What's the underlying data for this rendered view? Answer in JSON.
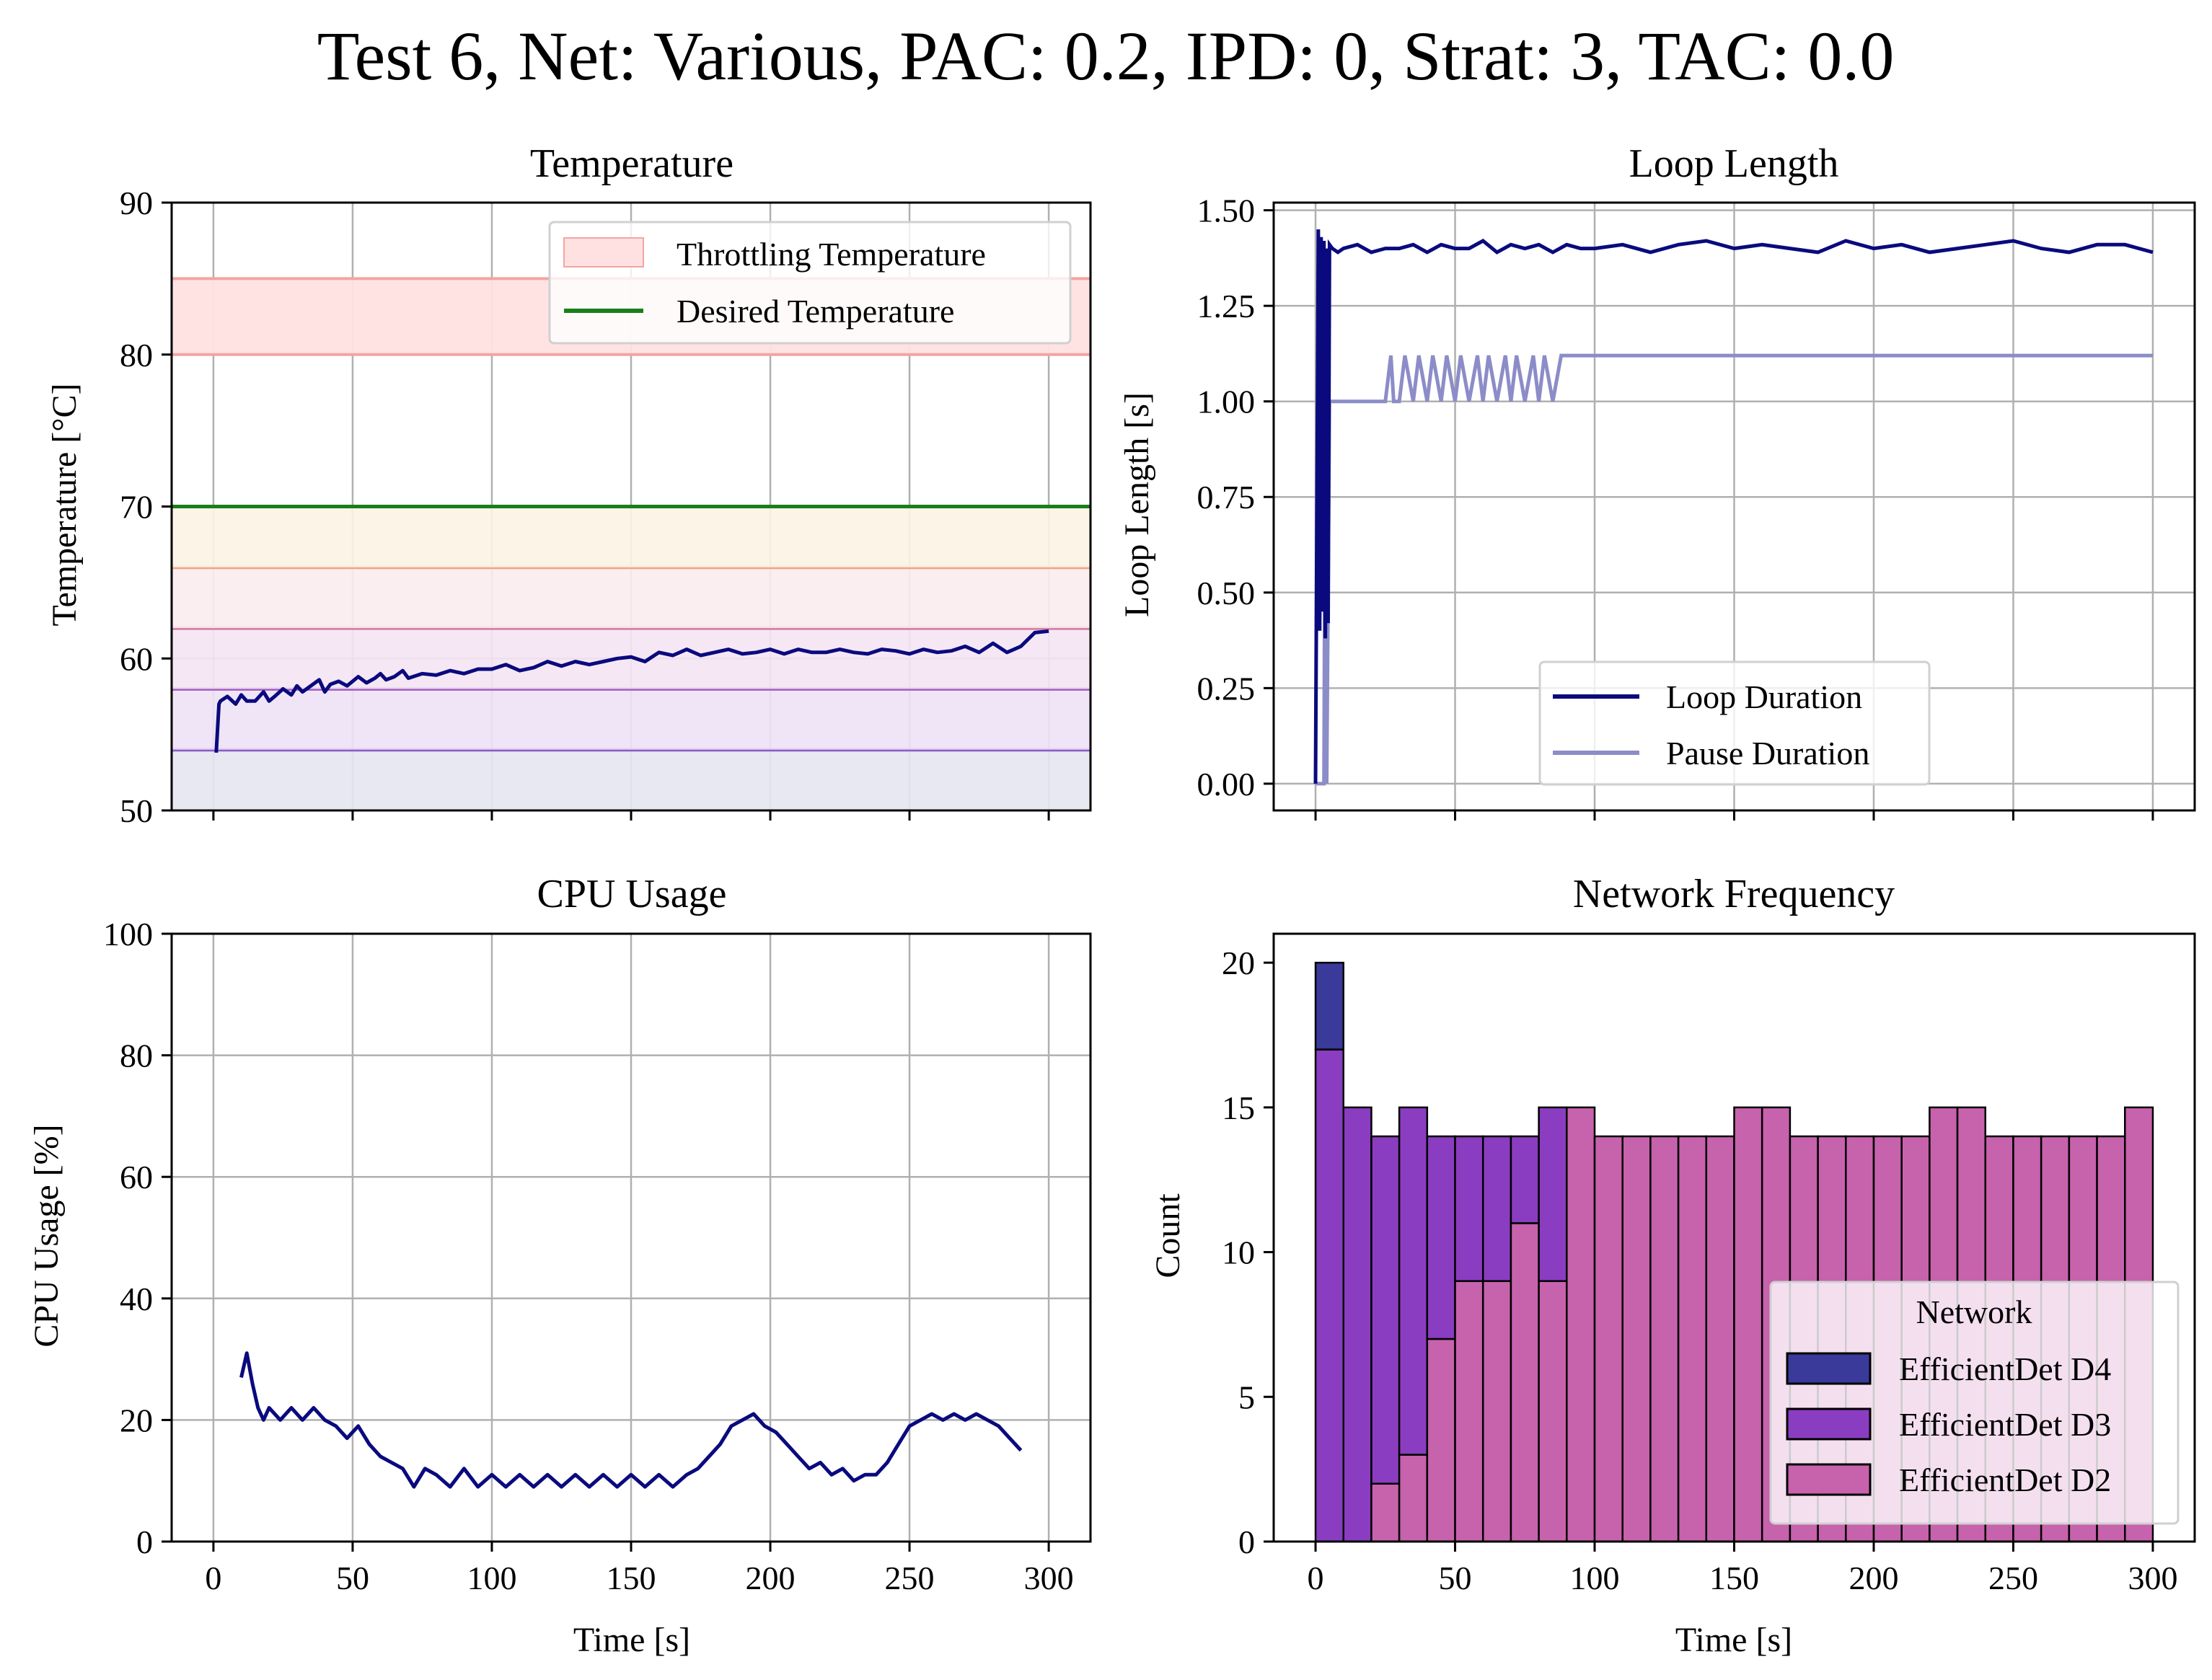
{
  "figure": {
    "title": "Test 6, Net: Various, PAC: 0.2, IPD: 0, Strat: 3, TAC: 0.0"
  },
  "colors": {
    "navy": "#0a0a7e",
    "pause": "#8c8cc8",
    "throttle_band": "#ffe1e1",
    "throttle_line": "#f4a3a3",
    "desired": "#1a7f1a",
    "hist_d4": "#3a3a9a",
    "hist_d3": "#8a3dc0",
    "hist_d2": "#c762ad"
  },
  "chart_data": [
    {
      "id": "temperature",
      "type": "line",
      "title": "Temperature",
      "xlabel": "",
      "ylabel": "Temperature [°C]",
      "xlim": [
        -15,
        315
      ],
      "ylim": [
        50,
        90
      ],
      "xticks": [
        0,
        50,
        100,
        150,
        200,
        250,
        300
      ],
      "yticks": [
        50,
        60,
        70,
        80,
        90
      ],
      "show_xticklabels": false,
      "grid": true,
      "legend": "top-right",
      "legend_entries": [
        "Throttling Temperature",
        "Desired Temperature"
      ],
      "throttling_band": [
        80,
        85
      ],
      "desired_temperature": 70,
      "bands": [
        {
          "y0": 50,
          "y1": 54,
          "fill": "#e5e5f2",
          "line": "#8a5cc6"
        },
        {
          "y0": 54,
          "y1": 58,
          "fill": "#ede2f6",
          "line": "#a05cc0"
        },
        {
          "y0": 58,
          "y1": 62,
          "fill": "#f4e6f3",
          "line": "#d07aa0"
        },
        {
          "y0": 62,
          "y1": 66,
          "fill": "#faecee",
          "line": "#f2a384"
        },
        {
          "y0": 66,
          "y1": 70,
          "fill": "#fdf3e6",
          "line": "#f7c2a2"
        }
      ],
      "series": [
        {
          "name": "Temperature",
          "x": [
            1,
            2,
            2.5,
            5,
            8,
            10,
            12,
            15,
            18,
            20,
            22,
            25,
            28,
            30,
            32,
            35,
            38,
            40,
            42,
            45,
            48,
            50,
            52,
            55,
            58,
            60,
            62,
            65,
            68,
            70,
            75,
            80,
            85,
            90,
            95,
            100,
            105,
            110,
            115,
            120,
            125,
            130,
            135,
            140,
            145,
            150,
            155,
            160,
            165,
            170,
            175,
            180,
            185,
            190,
            195,
            200,
            205,
            210,
            215,
            220,
            225,
            230,
            235,
            240,
            245,
            250,
            255,
            260,
            265,
            270,
            275,
            280,
            285,
            290,
            295,
            300
          ],
          "y": [
            53.8,
            57,
            57.2,
            57.5,
            57,
            57.6,
            57.2,
            57.2,
            57.8,
            57.2,
            57.5,
            58,
            57.6,
            58.2,
            57.8,
            58.2,
            58.6,
            57.8,
            58.3,
            58.5,
            58.2,
            58.5,
            58.8,
            58.4,
            58.7,
            59,
            58.6,
            58.8,
            59.2,
            58.7,
            59,
            58.9,
            59.2,
            59,
            59.3,
            59.3,
            59.6,
            59.2,
            59.4,
            59.8,
            59.5,
            59.8,
            59.6,
            59.8,
            60,
            60.1,
            59.8,
            60.4,
            60.2,
            60.6,
            60.2,
            60.4,
            60.6,
            60.3,
            60.4,
            60.6,
            60.3,
            60.6,
            60.4,
            60.4,
            60.6,
            60.4,
            60.3,
            60.6,
            60.5,
            60.3,
            60.6,
            60.4,
            60.5,
            60.8,
            60.4,
            61,
            60.4,
            60.8,
            61.7,
            61.8
          ]
        }
      ]
    },
    {
      "id": "loop",
      "type": "line",
      "title": "Loop Length",
      "xlabel": "",
      "ylabel": "Loop Length [s]",
      "xlim": [
        -15,
        315
      ],
      "ylim": [
        -0.07,
        1.52
      ],
      "xticks": [
        0,
        50,
        100,
        150,
        200,
        250,
        300
      ],
      "yticks": [
        0.0,
        0.25,
        0.5,
        0.75,
        1.0,
        1.25,
        1.5
      ],
      "ytick_labels": [
        "0.00",
        "0.25",
        "0.50",
        "0.75",
        "1.00",
        "1.25",
        "1.50"
      ],
      "show_xticklabels": false,
      "grid": true,
      "legend": "lower-center",
      "series": [
        {
          "name": "Loop Duration",
          "x": [
            0,
            1,
            1.5,
            2,
            2.5,
            3,
            3.5,
            4,
            4.5,
            5,
            6,
            8,
            10,
            15,
            20,
            25,
            30,
            35,
            40,
            45,
            50,
            55,
            60,
            65,
            70,
            75,
            80,
            85,
            90,
            95,
            100,
            110,
            120,
            130,
            140,
            150,
            160,
            170,
            180,
            190,
            200,
            210,
            220,
            230,
            240,
            250,
            260,
            270,
            280,
            290,
            300
          ],
          "y": [
            0.0,
            1.45,
            0.4,
            1.43,
            0.45,
            1.42,
            0.38,
            1.4,
            0.42,
            1.41,
            1.4,
            1.39,
            1.4,
            1.41,
            1.39,
            1.4,
            1.4,
            1.41,
            1.39,
            1.41,
            1.4,
            1.4,
            1.42,
            1.39,
            1.41,
            1.4,
            1.41,
            1.39,
            1.41,
            1.4,
            1.4,
            1.41,
            1.39,
            1.41,
            1.42,
            1.4,
            1.41,
            1.4,
            1.39,
            1.42,
            1.4,
            1.41,
            1.39,
            1.4,
            1.41,
            1.42,
            1.4,
            1.39,
            1.41,
            1.41,
            1.39
          ]
        },
        {
          "name": "Pause Duration",
          "x": [
            0,
            3,
            3.5,
            4,
            5,
            10,
            15,
            20,
            25,
            27,
            28,
            30,
            32,
            35,
            37,
            40,
            42,
            45,
            47,
            50,
            52,
            55,
            58,
            60,
            62,
            65,
            68,
            70,
            72,
            75,
            78,
            80,
            82,
            85,
            88,
            90,
            100,
            150,
            200,
            250,
            300
          ],
          "y": [
            0.0,
            0.0,
            1.0,
            0.0,
            1.0,
            1.0,
            1.0,
            1.0,
            1.0,
            1.12,
            1.0,
            1.0,
            1.12,
            1.0,
            1.12,
            1.0,
            1.12,
            1.0,
            1.12,
            1.0,
            1.12,
            1.0,
            1.12,
            1.0,
            1.12,
            1.0,
            1.12,
            1.0,
            1.12,
            1.0,
            1.12,
            1.0,
            1.12,
            1.0,
            1.12,
            1.12,
            1.12,
            1.12,
            1.12,
            1.12,
            1.12
          ]
        }
      ]
    },
    {
      "id": "cpu",
      "type": "line",
      "title": "CPU Usage",
      "xlabel": "Time [s]",
      "ylabel": "CPU Usage [%]",
      "xlim": [
        -15,
        315
      ],
      "ylim": [
        0,
        100
      ],
      "xticks": [
        0,
        50,
        100,
        150,
        200,
        250,
        300
      ],
      "yticks": [
        0,
        20,
        40,
        60,
        80,
        100
      ],
      "show_xticklabels": true,
      "grid": true,
      "series": [
        {
          "name": "CPU Usage",
          "x": [
            10,
            12,
            14,
            16,
            18,
            20,
            24,
            28,
            32,
            36,
            40,
            44,
            48,
            52,
            56,
            60,
            64,
            68,
            72,
            76,
            80,
            85,
            90,
            95,
            100,
            105,
            110,
            115,
            120,
            125,
            130,
            135,
            140,
            145,
            150,
            155,
            160,
            165,
            170,
            174,
            178,
            182,
            186,
            190,
            194,
            198,
            202,
            206,
            210,
            214,
            218,
            222,
            226,
            230,
            234,
            238,
            242,
            246,
            250,
            254,
            258,
            262,
            266,
            270,
            274,
            278,
            282,
            286,
            290
          ],
          "y": [
            27,
            31,
            26,
            22,
            20,
            22,
            20,
            22,
            20,
            22,
            20,
            19,
            17,
            19,
            16,
            14,
            13,
            12,
            9,
            12,
            11,
            9,
            12,
            9,
            11,
            9,
            11,
            9,
            11,
            9,
            11,
            9,
            11,
            9,
            11,
            9,
            11,
            9,
            11,
            12,
            14,
            16,
            19,
            20,
            21,
            19,
            18,
            16,
            14,
            12,
            13,
            11,
            12,
            10,
            11,
            11,
            13,
            16,
            19,
            20,
            21,
            20,
            21,
            20,
            21,
            20,
            19,
            17,
            15
          ]
        }
      ]
    },
    {
      "id": "network",
      "type": "bar",
      "title": "Network Frequency",
      "xlabel": "Time [s]",
      "ylabel": "Count",
      "xlim": [
        -15,
        315
      ],
      "ylim": [
        0,
        21
      ],
      "xticks": [
        0,
        50,
        100,
        150,
        200,
        250,
        300
      ],
      "yticks": [
        0,
        5,
        10,
        15,
        20
      ],
      "show_xticklabels": true,
      "grid": false,
      "legend": "lower-right",
      "legend_title": "Network",
      "bin_edges": [
        0,
        10,
        20,
        30,
        40,
        50,
        60,
        70,
        80,
        90,
        100,
        110,
        120,
        130,
        140,
        150,
        160,
        170,
        180,
        190,
        200,
        210,
        220,
        230,
        240,
        250,
        260,
        270,
        280,
        290,
        300
      ],
      "series": [
        {
          "name": "EfficientDet D2",
          "values": [
            0,
            0,
            2,
            3,
            7,
            9,
            9,
            11,
            9,
            15,
            14,
            14,
            14,
            14,
            14,
            15,
            15,
            14,
            14,
            14,
            14,
            14,
            15,
            15,
            14,
            14,
            14,
            14,
            14,
            15
          ]
        },
        {
          "name": "EfficientDet D3",
          "values": [
            17,
            15,
            12,
            12,
            7,
            5,
            5,
            3,
            6,
            0,
            0,
            0,
            0,
            0,
            0,
            0,
            0,
            0,
            0,
            0,
            0,
            0,
            0,
            0,
            0,
            0,
            0,
            0,
            0,
            0
          ]
        },
        {
          "name": "EfficientDet D4",
          "values": [
            3,
            0,
            0,
            0,
            0,
            0,
            0,
            0,
            0,
            0,
            0,
            0,
            0,
            0,
            0,
            0,
            0,
            0,
            0,
            0,
            0,
            0,
            0,
            0,
            0,
            0,
            0,
            0,
            0,
            0
          ]
        }
      ],
      "legend_entries": [
        "EfficientDet D4",
        "EfficientDet D3",
        "EfficientDet D2"
      ]
    }
  ]
}
